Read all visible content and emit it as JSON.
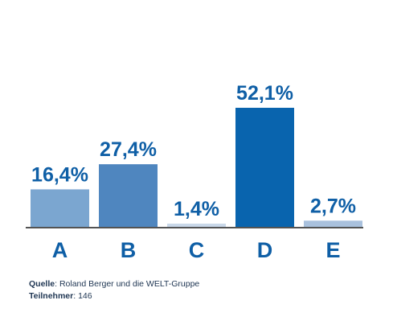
{
  "chart_data": {
    "type": "bar",
    "categories": [
      "A",
      "B",
      "C",
      "D",
      "E"
    ],
    "values": [
      16.4,
      27.4,
      1.4,
      52.1,
      2.7
    ],
    "value_labels": [
      "16,4%",
      "27,4%",
      "1,4%",
      "52,1%",
      "2,7%"
    ],
    "unit": "%",
    "bar_colors": [
      "#7ba6d0",
      "#4f86bf",
      "#c9d8e9",
      "#0964ae",
      "#a9c1dd"
    ],
    "label_color": "#0f5fa6",
    "axis_color": "#1a1a1a",
    "ylim": [
      0,
      52.1
    ],
    "grid": false,
    "legend": "none",
    "title": "",
    "xlabel": "",
    "ylabel": ""
  },
  "footer": {
    "source_label": "Quelle",
    "source_text": ": Roland Berger und die WELT-Gruppe",
    "participants_label": "Teilnehmer",
    "participants_text": ": 146"
  }
}
